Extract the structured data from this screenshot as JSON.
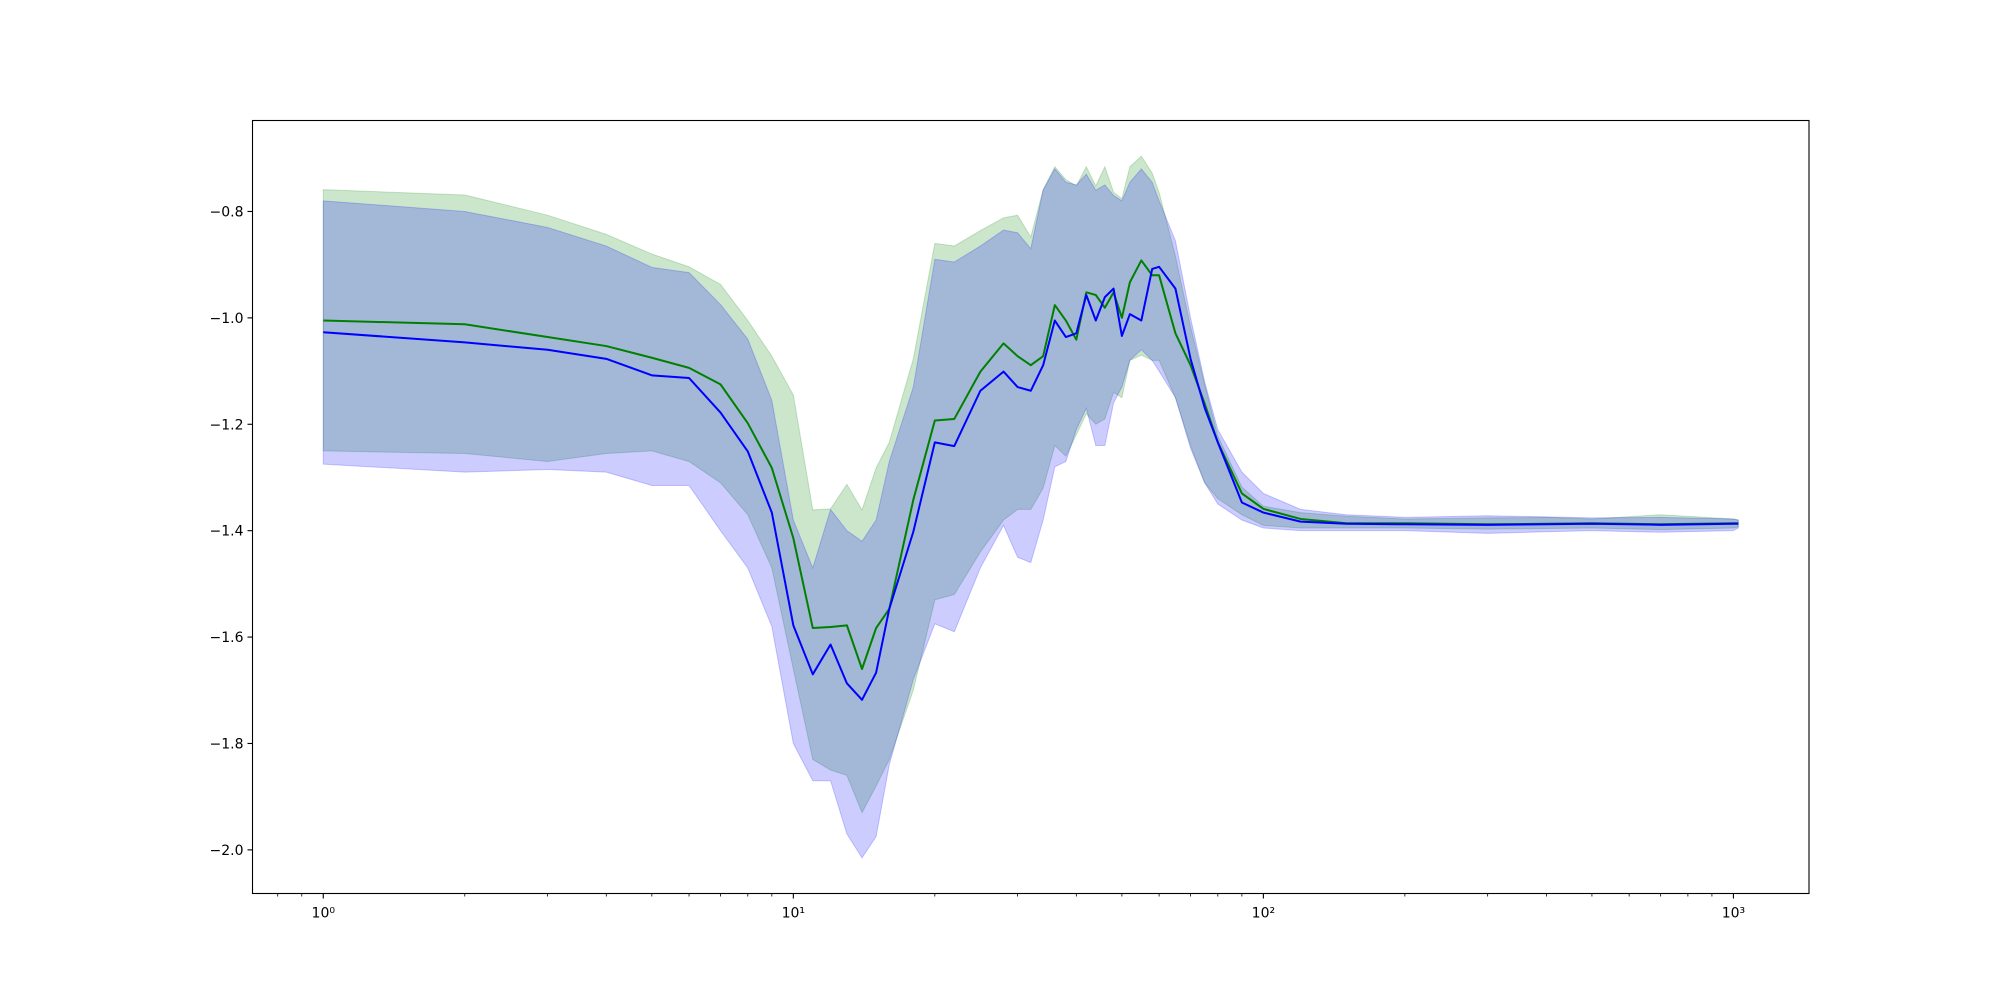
{
  "chart_data": {
    "type": "line",
    "xscale": "log",
    "xlim": [
      0.707,
      1448
    ],
    "ylim": [
      -2.082,
      -0.629
    ],
    "xticks": [
      {
        "value": 1,
        "label": "10⁰"
      },
      {
        "value": 10,
        "label": "10¹"
      },
      {
        "value": 100,
        "label": "10²"
      },
      {
        "value": 1000,
        "label": "10³"
      }
    ],
    "xminorticks": [
      0.8,
      0.9,
      2,
      3,
      4,
      5,
      6,
      7,
      8,
      9,
      20,
      30,
      40,
      50,
      60,
      70,
      80,
      90,
      200,
      300,
      400,
      500,
      600,
      700,
      800,
      900
    ],
    "yticks": [
      {
        "value": -2.0,
        "label": "−2.0"
      },
      {
        "value": -1.8,
        "label": "−1.8"
      },
      {
        "value": -1.6,
        "label": "−1.6"
      },
      {
        "value": -1.4,
        "label": "−1.4"
      },
      {
        "value": -1.2,
        "label": "−1.2"
      },
      {
        "value": -1.0,
        "label": "−1.0"
      },
      {
        "value": -0.8,
        "label": "−0.8"
      }
    ],
    "grid": false,
    "band_opacity": 0.2,
    "x": [
      1,
      2,
      3,
      4,
      5,
      6,
      7,
      8,
      9,
      10,
      11,
      12,
      13,
      14,
      15,
      16,
      18,
      20,
      22,
      25,
      28,
      30,
      32,
      34,
      36,
      38,
      40,
      42,
      44,
      46,
      48,
      50,
      52,
      55,
      58,
      60,
      65,
      70,
      75,
      80,
      90,
      100,
      120,
      150,
      200,
      300,
      400,
      500,
      700,
      1000,
      1024
    ],
    "series": [
      {
        "color": "#008000",
        "values": [
          -1.005,
          -1.012,
          -1.036,
          -1.053,
          -1.075,
          -1.094,
          -1.125,
          -1.198,
          -1.282,
          -1.414,
          -1.583,
          -1.581,
          -1.578,
          -1.66,
          -1.583,
          -1.547,
          -1.342,
          -1.193,
          -1.19,
          -1.101,
          -1.048,
          -1.072,
          -1.089,
          -1.072,
          -0.976,
          -1.005,
          -1.041,
          -0.952,
          -0.957,
          -0.981,
          -0.952,
          -1.0,
          -0.933,
          -0.892,
          -0.92,
          -0.92,
          -1.029,
          -1.089,
          -1.161,
          -1.234,
          -1.33,
          -1.359,
          -1.378,
          -1.386,
          -1.386,
          -1.388,
          -1.387,
          -1.386,
          -1.388,
          -1.386,
          -1.386
        ],
        "upper": [
          -0.759,
          -0.769,
          -0.807,
          -0.843,
          -0.88,
          -0.904,
          -0.937,
          -1.005,
          -1.072,
          -1.145,
          -1.361,
          -1.359,
          -1.313,
          -1.361,
          -1.282,
          -1.234,
          -1.077,
          -0.86,
          -0.865,
          -0.836,
          -0.812,
          -0.807,
          -0.848,
          -0.759,
          -0.716,
          -0.74,
          -0.752,
          -0.716,
          -0.752,
          -0.716,
          -0.764,
          -0.776,
          -0.716,
          -0.696,
          -0.728,
          -0.764,
          -0.884,
          -1.017,
          -1.125,
          -1.222,
          -1.318,
          -1.354,
          -1.366,
          -1.373,
          -1.378,
          -1.376,
          -1.375,
          -1.378,
          -1.37,
          -1.378,
          -1.38
        ],
        "lower": [
          -1.25,
          -1.255,
          -1.27,
          -1.255,
          -1.25,
          -1.27,
          -1.31,
          -1.37,
          -1.47,
          -1.66,
          -1.83,
          -1.85,
          -1.86,
          -1.93,
          -1.88,
          -1.83,
          -1.7,
          -1.53,
          -1.52,
          -1.44,
          -1.38,
          -1.36,
          -1.36,
          -1.32,
          -1.24,
          -1.26,
          -1.22,
          -1.18,
          -1.2,
          -1.19,
          -1.14,
          -1.15,
          -1.08,
          -1.07,
          -1.08,
          -1.08,
          -1.15,
          -1.24,
          -1.31,
          -1.34,
          -1.37,
          -1.39,
          -1.395,
          -1.395,
          -1.395,
          -1.397,
          -1.396,
          -1.395,
          -1.398,
          -1.395,
          -1.393
        ]
      },
      {
        "color": "#0000ff",
        "values": [
          -1.027,
          -1.046,
          -1.06,
          -1.077,
          -1.108,
          -1.113,
          -1.178,
          -1.251,
          -1.366,
          -1.578,
          -1.67,
          -1.614,
          -1.687,
          -1.718,
          -1.667,
          -1.547,
          -1.402,
          -1.234,
          -1.241,
          -1.137,
          -1.101,
          -1.13,
          -1.137,
          -1.089,
          -1.005,
          -1.036,
          -1.029,
          -0.957,
          -1.005,
          -0.961,
          -0.945,
          -1.034,
          -0.993,
          -1.005,
          -0.908,
          -0.904,
          -0.945,
          -1.077,
          -1.169,
          -1.234,
          -1.347,
          -1.366,
          -1.383,
          -1.387,
          -1.388,
          -1.389,
          -1.388,
          -1.387,
          -1.389,
          -1.387,
          -1.387
        ],
        "upper": [
          -0.78,
          -0.8,
          -0.83,
          -0.865,
          -0.905,
          -0.915,
          -0.975,
          -1.04,
          -1.155,
          -1.38,
          -1.47,
          -1.36,
          -1.4,
          -1.42,
          -1.38,
          -1.27,
          -1.13,
          -0.89,
          -0.895,
          -0.865,
          -0.835,
          -0.84,
          -0.87,
          -0.76,
          -0.72,
          -0.745,
          -0.75,
          -0.73,
          -0.76,
          -0.75,
          -0.77,
          -0.78,
          -0.745,
          -0.72,
          -0.745,
          -0.78,
          -0.855,
          -1.0,
          -1.12,
          -1.21,
          -1.29,
          -1.33,
          -1.36,
          -1.37,
          -1.375,
          -1.372,
          -1.374,
          -1.376,
          -1.375,
          -1.378,
          -1.38
        ],
        "lower": [
          -1.275,
          -1.29,
          -1.285,
          -1.29,
          -1.315,
          -1.315,
          -1.4,
          -1.47,
          -1.58,
          -1.8,
          -1.87,
          -1.87,
          -1.97,
          -2.015,
          -1.975,
          -1.84,
          -1.68,
          -1.575,
          -1.59,
          -1.47,
          -1.39,
          -1.45,
          -1.46,
          -1.38,
          -1.28,
          -1.27,
          -1.21,
          -1.17,
          -1.24,
          -1.24,
          -1.16,
          -1.13,
          -1.08,
          -1.06,
          -1.08,
          -1.1,
          -1.15,
          -1.245,
          -1.31,
          -1.35,
          -1.38,
          -1.395,
          -1.4,
          -1.4,
          -1.4,
          -1.405,
          -1.402,
          -1.4,
          -1.403,
          -1.4,
          -1.395
        ]
      }
    ]
  }
}
